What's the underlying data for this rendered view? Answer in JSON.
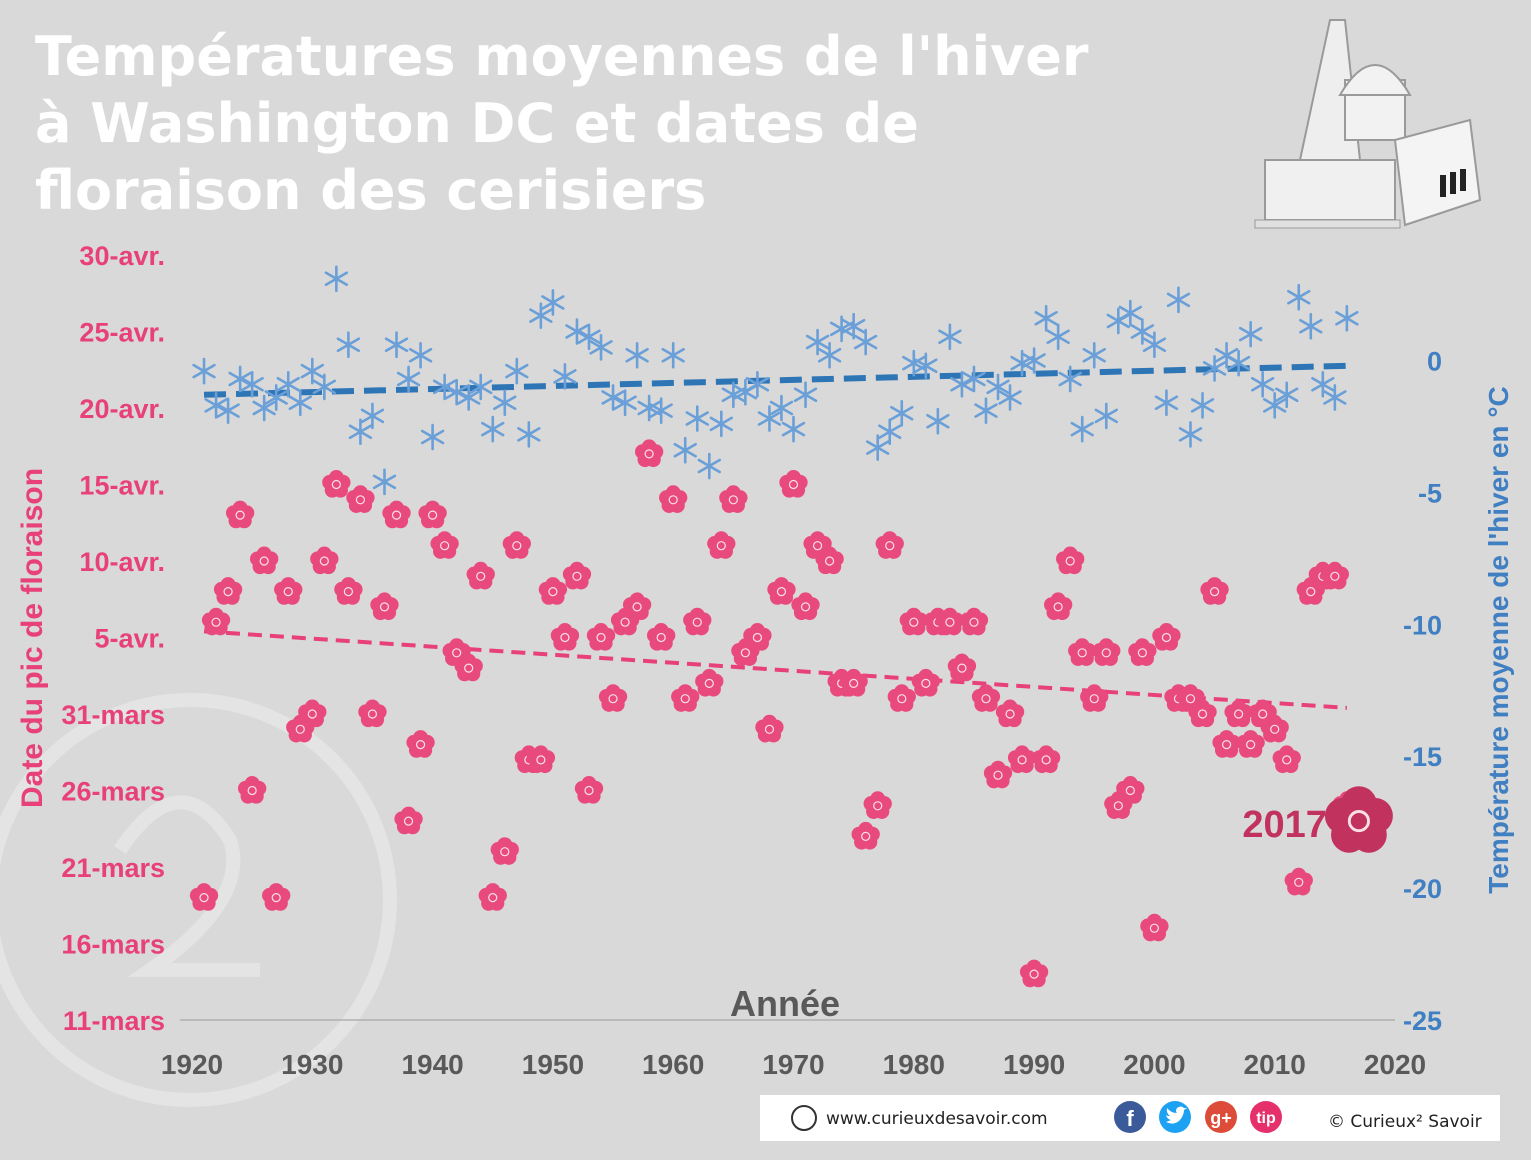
{
  "chart_data": {
    "type": "scatter",
    "title": [
      "Températures moyennes de l'hiver",
      "à Washington DC et dates de",
      "floraison des cerisiers"
    ],
    "xlabel": "Année",
    "ylabel": "Date du pic de floraison",
    "y2label": "Température moyenne de l'hiver en °C",
    "xlim": [
      1920,
      2020
    ],
    "xticks": [
      1920,
      1930,
      1940,
      1950,
      1960,
      1970,
      1980,
      1990,
      2000,
      2010,
      2020
    ],
    "ylim": [
      70,
      120
    ],
    "yticks": [
      {
        "value": 70,
        "label": "11-mars"
      },
      {
        "value": 75,
        "label": "16-mars"
      },
      {
        "value": 80,
        "label": "21-mars"
      },
      {
        "value": 85,
        "label": "26-mars"
      },
      {
        "value": 90,
        "label": "31-mars"
      },
      {
        "value": 95,
        "label": "5-avr."
      },
      {
        "value": 100,
        "label": "10-avr."
      },
      {
        "value": 105,
        "label": "15-avr."
      },
      {
        "value": 110,
        "label": "20-avr."
      },
      {
        "value": 115,
        "label": "25-avr."
      },
      {
        "value": 120,
        "label": "30-avr."
      }
    ],
    "y2lim": [
      -25,
      4
    ],
    "y2ticks": [
      -25,
      -20,
      -15,
      -10,
      -5,
      0
    ],
    "x": [
      1921,
      1922,
      1923,
      1924,
      1925,
      1926,
      1927,
      1928,
      1929,
      1930,
      1931,
      1932,
      1933,
      1934,
      1935,
      1936,
      1937,
      1938,
      1939,
      1940,
      1941,
      1942,
      1943,
      1944,
      1945,
      1946,
      1947,
      1948,
      1949,
      1950,
      1951,
      1952,
      1953,
      1954,
      1955,
      1956,
      1957,
      1958,
      1959,
      1960,
      1961,
      1962,
      1963,
      1964,
      1965,
      1966,
      1967,
      1968,
      1969,
      1970,
      1971,
      1972,
      1973,
      1974,
      1975,
      1976,
      1977,
      1978,
      1979,
      1980,
      1981,
      1982,
      1983,
      1984,
      1985,
      1986,
      1987,
      1988,
      1989,
      1990,
      1991,
      1992,
      1993,
      1994,
      1995,
      1996,
      1997,
      1998,
      1999,
      2000,
      2001,
      2002,
      2003,
      2004,
      2005,
      2006,
      2007,
      2008,
      2009,
      2010,
      2011,
      2012,
      2013,
      2014,
      2015,
      2016
    ],
    "series": [
      {
        "marker": "flower",
        "color": "#e94a7e",
        "axis": "y",
        "values": [
          78,
          96,
          98,
          103,
          85,
          100,
          78,
          98,
          89,
          90,
          100,
          105,
          98,
          104,
          90,
          97,
          103,
          83,
          88,
          103,
          101,
          94,
          93,
          99,
          78,
          81,
          101,
          87,
          87,
          98,
          95,
          99,
          85,
          95,
          91,
          96,
          97,
          107,
          95,
          104,
          91,
          96,
          92,
          101,
          104,
          94,
          95,
          89,
          98,
          105,
          97,
          101,
          100,
          92,
          92,
          82,
          84,
          101,
          91,
          96,
          92,
          96,
          96,
          93,
          96,
          91,
          86,
          90,
          87,
          73,
          87,
          97,
          100,
          94,
          91,
          94,
          84,
          85,
          94,
          76,
          95,
          91,
          91,
          90,
          98,
          88,
          90,
          88,
          90,
          89,
          87,
          79,
          98,
          99,
          99,
          84
        ]
      },
      {
        "marker": "snowflake",
        "color": "#6a9fd8",
        "axis": "y2",
        "values": [
          -0.4,
          -1.7,
          -1.9,
          -0.7,
          -0.9,
          -1.8,
          -1.4,
          -0.9,
          -1.6,
          -0.4,
          -1.0,
          3.1,
          0.6,
          -2.7,
          -2.1,
          -4.6,
          0.6,
          -0.7,
          0.2,
          -2.9,
          -1.0,
          -1.2,
          -1.4,
          -1.0,
          -2.6,
          -1.6,
          -0.4,
          -2.8,
          1.7,
          2.2,
          -0.6,
          1.1,
          0.9,
          0.5,
          -1.4,
          -1.6,
          0.2,
          -1.8,
          -1.9,
          0.2,
          -3.4,
          -2.2,
          -4.0,
          -2.4,
          -1.3,
          -1.2,
          -0.9,
          -2.2,
          -1.8,
          -2.6,
          -1.3,
          0.7,
          0.2,
          1.2,
          1.3,
          0.7,
          -3.3,
          -2.7,
          -2.0,
          -0.1,
          -0.2,
          -2.3,
          0.9,
          -0.9,
          -0.7,
          -1.9,
          -1.0,
          -1.4,
          -0.1,
          0.0,
          1.6,
          0.9,
          -0.7,
          -2.6,
          0.2,
          -2.1,
          1.5,
          1.8,
          1.1,
          0.6,
          -1.6,
          2.3,
          -2.8,
          -1.7,
          -0.3,
          0.2,
          -0.1,
          1.0,
          -0.9,
          -1.7,
          -1.3,
          2.4,
          1.3,
          -0.9,
          -1.4,
          1.6
        ]
      }
    ],
    "trendlines": [
      {
        "x": [
          1921,
          2016
        ],
        "values": [
          -1.3,
          -0.2
        ],
        "axis": "y2",
        "color": "#2e75b6"
      },
      {
        "x": [
          1921,
          2016
        ],
        "values": [
          95.4,
          90.4
        ],
        "axis": "y",
        "color": "#e8407a"
      }
    ],
    "highlight": {
      "label": "2017",
      "x": 2017,
      "value": 83,
      "color": "#c2325f"
    },
    "footer": {
      "website": "www.curieuxdesavoir.com",
      "copyright": "© Curieux² Savoir",
      "social": [
        "f",
        "g+",
        "tip"
      ]
    }
  }
}
